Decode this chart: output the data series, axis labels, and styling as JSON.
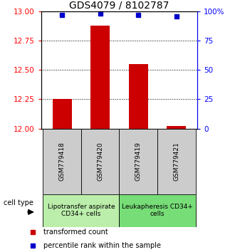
{
  "title": "GDS4079 / 8102787",
  "samples": [
    "GSM779418",
    "GSM779420",
    "GSM779419",
    "GSM779421"
  ],
  "transformed_count": [
    12.25,
    12.88,
    12.55,
    12.02
  ],
  "percentile_rank": [
    97,
    98,
    97,
    96
  ],
  "ylim_left": [
    12,
    13
  ],
  "ylim_right": [
    0,
    100
  ],
  "yticks_left": [
    12,
    12.25,
    12.5,
    12.75,
    13
  ],
  "yticks_right": [
    0,
    25,
    50,
    75,
    100
  ],
  "ytick_labels_right": [
    "0",
    "25",
    "50",
    "75",
    "100%"
  ],
  "bar_color": "#cc0000",
  "dot_color": "#0000cc",
  "grid_lines": [
    12.25,
    12.5,
    12.75
  ],
  "sample_bg_color": "#cccccc",
  "group_info": [
    {
      "range": [
        0,
        1
      ],
      "label": "Lipotransfer aspirate\nCD34+ cells",
      "color": "#bbeeaa"
    },
    {
      "range": [
        2,
        3
      ],
      "label": "Leukapheresis CD34+\ncells",
      "color": "#77dd77"
    }
  ],
  "cell_type_label": "cell type",
  "legend_items": [
    {
      "color": "#cc0000",
      "label": "transformed count"
    },
    {
      "color": "#0000cc",
      "label": "percentile rank within the sample"
    }
  ],
  "bar_width": 0.5,
  "x_positions": [
    0,
    1,
    2,
    3
  ],
  "title_fontsize": 10,
  "tick_fontsize": 7.5,
  "sample_fontsize": 6.5,
  "group_fontsize": 6.5,
  "legend_fontsize": 7
}
